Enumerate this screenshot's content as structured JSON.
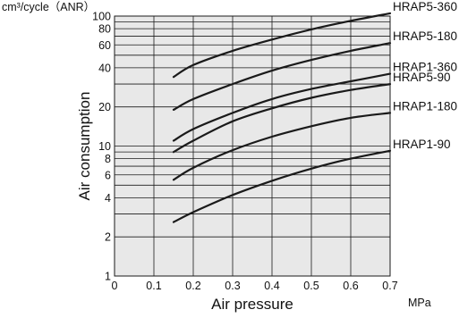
{
  "chart_data": {
    "type": "line",
    "title": "",
    "xlabel": "Air pressure",
    "x_unit": "MPa",
    "ylabel": "Air consumption",
    "y_unit": "cm³/cycle（ANR）",
    "xlim": [
      0,
      0.7
    ],
    "ylim": [
      1,
      100
    ],
    "y_scale": "log",
    "grid": true,
    "legend": "labels at line ends",
    "x_ticks": [
      0,
      0.1,
      0.2,
      0.3,
      0.4,
      0.5,
      0.6,
      0.7
    ],
    "x_tick_labels": [
      "0",
      "0.1",
      "0.2",
      "0.3",
      "0.4",
      "0.5",
      "0.6",
      "0.7"
    ],
    "y_ticks": [
      1,
      2,
      4,
      6,
      8,
      10,
      20,
      40,
      60,
      80,
      100
    ],
    "y_tick_labels": [
      "1",
      "2",
      "4",
      "6",
      "8",
      "10",
      "20",
      "40",
      "60",
      "80",
      "100"
    ],
    "y_minor_gridlines": [
      3,
      5,
      7,
      9,
      30,
      50,
      70,
      90
    ],
    "series": [
      {
        "name": "HRAP5-360",
        "x": [
          0.15,
          0.2,
          0.3,
          0.4,
          0.5,
          0.6,
          0.7
        ],
        "values": [
          34,
          42,
          54,
          66,
          79,
          92,
          105
        ]
      },
      {
        "name": "HRAP5-180",
        "x": [
          0.15,
          0.2,
          0.3,
          0.4,
          0.5,
          0.6,
          0.7
        ],
        "values": [
          19,
          23,
          30,
          38,
          46,
          54,
          62
        ]
      },
      {
        "name": "HRAP1-360",
        "x": [
          0.15,
          0.2,
          0.3,
          0.4,
          0.5,
          0.6,
          0.7
        ],
        "values": [
          11,
          13.5,
          18,
          23,
          27.5,
          31.5,
          36
        ]
      },
      {
        "name": "HRAP5-90",
        "x": [
          0.15,
          0.2,
          0.3,
          0.4,
          0.5,
          0.6,
          0.7
        ],
        "values": [
          9,
          11,
          15.5,
          19.5,
          23.5,
          27,
          30
        ]
      },
      {
        "name": "HRAP1-180",
        "x": [
          0.15,
          0.2,
          0.3,
          0.4,
          0.5,
          0.6,
          0.7
        ],
        "values": [
          5.5,
          6.8,
          9.3,
          11.8,
          14.2,
          16.5,
          18
        ]
      },
      {
        "name": "HRAP1-90",
        "x": [
          0.15,
          0.2,
          0.3,
          0.4,
          0.5,
          0.6,
          0.7
        ],
        "values": [
          2.6,
          3.1,
          4.2,
          5.4,
          6.7,
          8,
          9.2
        ]
      }
    ],
    "colors": {
      "plot_background": "#e8e8e8",
      "line": "#1a1a1a",
      "grid": "#1a1a1a"
    }
  }
}
